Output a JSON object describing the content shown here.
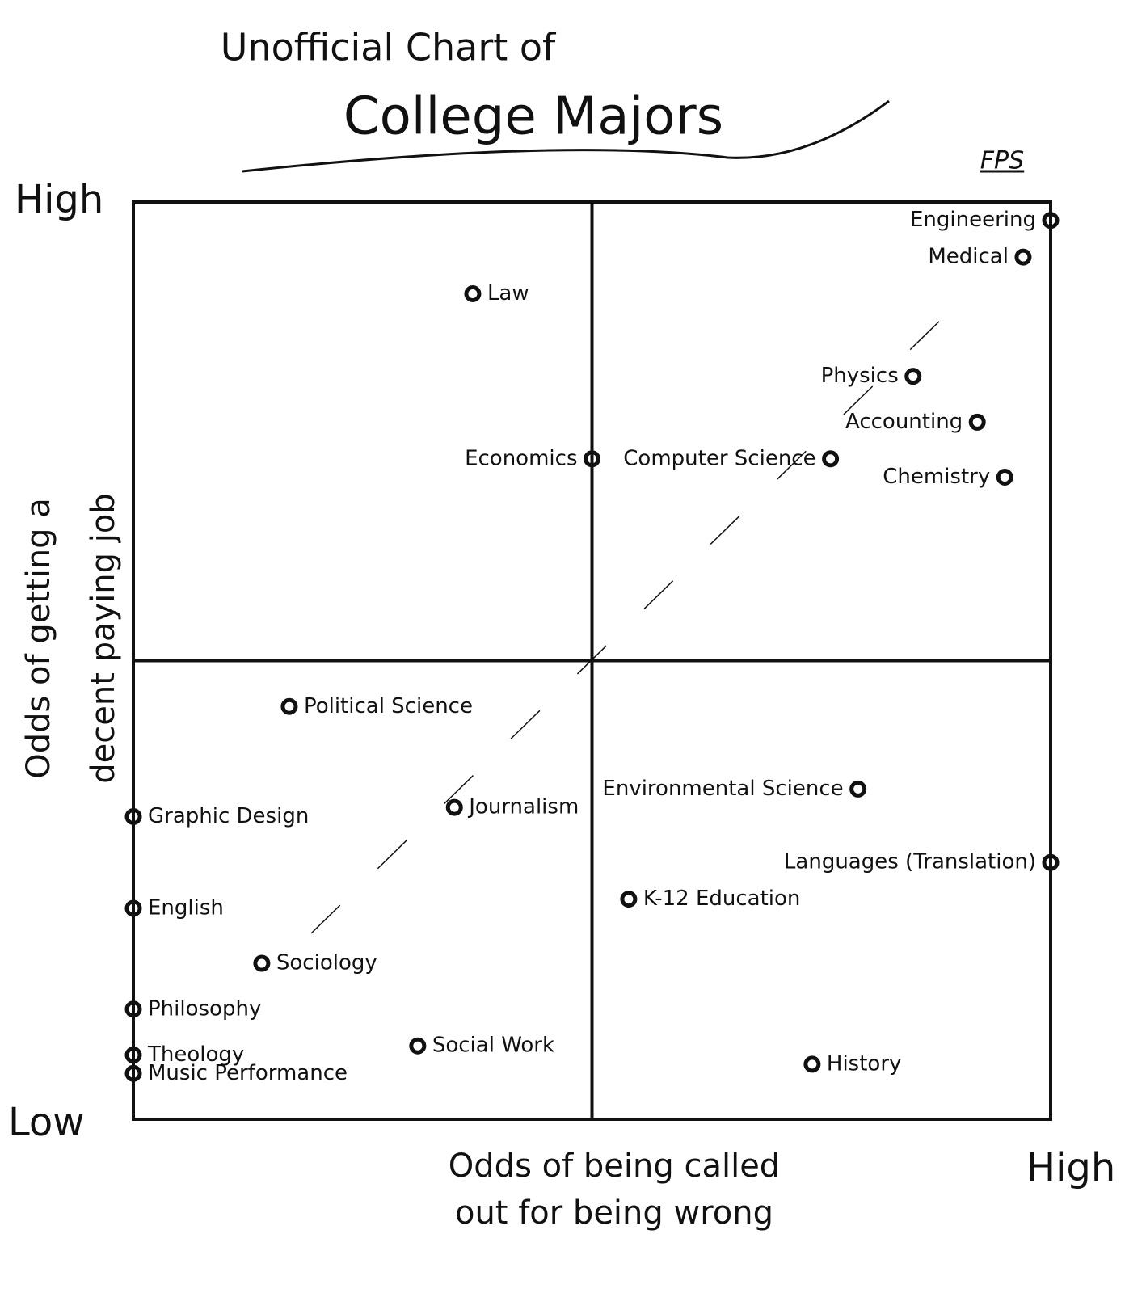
{
  "chart_data": {
    "type": "scatter",
    "title": "Unofficial Chart of",
    "subtitle": "College Majors",
    "signature": "FPS",
    "x_label": [
      "Odds of being called",
      "out for being wrong"
    ],
    "y_label": [
      "Odds of getting a",
      "decent paying job"
    ],
    "y_high_label": "High",
    "y_low_label": "Low",
    "x_high_label": "High",
    "color": "#111111",
    "xlim": [
      0,
      100
    ],
    "ylim": [
      0,
      100
    ],
    "labels": [
      "Engineering",
      "Medical",
      "Law",
      "Physics",
      "Accounting",
      "Economics",
      "Computer Science",
      "Chemistry",
      "Political Science",
      "Journalism",
      "Graphic Design",
      "Environmental Science",
      "Languages (Translation)",
      "K-12 Education",
      "English",
      "Sociology",
      "Philosophy",
      "Social Work",
      "Theology",
      "Music Performance",
      "History"
    ],
    "x": [
      100,
      97,
      37,
      85,
      92,
      50,
      76,
      95,
      17,
      35,
      0,
      79,
      100,
      54,
      0,
      14,
      0,
      31,
      0,
      0,
      74
    ],
    "values": [
      98,
      94,
      90,
      81,
      76,
      72,
      72,
      70,
      45,
      34,
      33,
      36,
      28,
      24,
      23,
      17,
      12,
      8,
      7,
      5,
      6
    ]
  }
}
